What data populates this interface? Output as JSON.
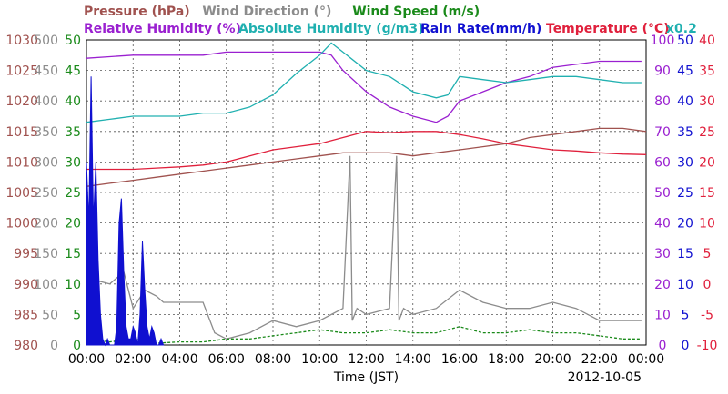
{
  "chart_data": {
    "type": "line",
    "date_label": "2012-10-05",
    "xlabel": "Time (JST)",
    "x_ticks": [
      "00:00",
      "02:00",
      "04:00",
      "06:00",
      "08:00",
      "10:00",
      "12:00",
      "14:00",
      "16:00",
      "18:00",
      "20:00",
      "22:00",
      "00:00"
    ],
    "legend_row1": [
      {
        "label": "Pressure (hPa)",
        "color": "#a0524f"
      },
      {
        "label": "Wind Direction (°)",
        "color": "#8c8c8c"
      },
      {
        "label": "Wind Speed (m/s)",
        "color": "#1a8a1a"
      }
    ],
    "legend_row2": [
      {
        "label": "Relative Humidity (%)",
        "color": "#9a20d0"
      },
      {
        "label": "Absolute Humidity (g/m3)",
        "color": "#20b0b0"
      },
      {
        "label": "Rain Rate(mm/h)",
        "color": "#1010d0"
      },
      {
        "label": "Temperature (°C)",
        "color": "#e0203c"
      },
      {
        "label": "x0.2",
        "color": "#20b0b0"
      }
    ],
    "axes": {
      "pressure": {
        "ticks": [
          "980",
          "985",
          "990",
          "995",
          "1000",
          "1005",
          "1010",
          "1015",
          "1020",
          "1025",
          "1030"
        ],
        "color": "#a0524f",
        "range": [
          980,
          1030
        ]
      },
      "wind_dir": {
        "ticks": [
          "0",
          "50",
          "100",
          "150",
          "200",
          "250",
          "300",
          "350",
          "400",
          "450",
          "500"
        ],
        "color": "#8c8c8c",
        "range": [
          0,
          500
        ]
      },
      "wind_speed": {
        "ticks": [
          "0",
          "5",
          "10",
          "15",
          "20",
          "25",
          "30",
          "35",
          "40",
          "45",
          "50"
        ],
        "color": "#1a8a1a",
        "range": [
          0,
          50
        ]
      },
      "humidity": {
        "ticks": [
          "0",
          "10",
          "20",
          "30",
          "40",
          "50",
          "60",
          "70",
          "80",
          "90",
          "100"
        ],
        "color": "#9a20d0",
        "range": [
          0,
          100
        ]
      },
      "rain": {
        "ticks": [
          "0",
          "5",
          "10",
          "15",
          "20",
          "25",
          "30",
          "35",
          "40",
          "45",
          "50"
        ],
        "color": "#1010d0",
        "range": [
          0,
          50
        ]
      },
      "temperature": {
        "ticks": [
          "-10",
          "-5",
          "0",
          "5",
          "10",
          "15",
          "20",
          "25",
          "30",
          "35",
          "40"
        ],
        "color": "#e0203c",
        "range": [
          -10,
          40
        ]
      }
    },
    "series": [
      {
        "name": "Pressure (hPa)",
        "axis": "pressure",
        "color": "#a0524f",
        "x": [
          0,
          1,
          2,
          3,
          4,
          5,
          6,
          7,
          8,
          9,
          10,
          11,
          12,
          13,
          14,
          15,
          16,
          17,
          18,
          19,
          20,
          21,
          22,
          23,
          24
        ],
        "y": [
          1006,
          1006.5,
          1007,
          1007.5,
          1008,
          1008.5,
          1009,
          1009.5,
          1010,
          1010.5,
          1011,
          1011.5,
          1011.5,
          1011.5,
          1011,
          1011.5,
          1012,
          1012.5,
          1013,
          1014,
          1014.5,
          1015,
          1015.5,
          1015.5,
          1015
        ]
      },
      {
        "name": "Temperature (°C)",
        "axis": "temperature",
        "color": "#e0203c",
        "x": [
          0,
          1,
          2,
          3,
          4,
          5,
          6,
          7,
          8,
          9,
          10,
          11,
          12,
          13,
          14,
          15,
          16,
          17,
          18,
          19,
          20,
          21,
          22,
          23,
          24
        ],
        "y": [
          18.8,
          18.8,
          18.8,
          19,
          19.2,
          19.5,
          20,
          21,
          22,
          22.5,
          23,
          24,
          25,
          24.8,
          25,
          25,
          24.5,
          23.8,
          23,
          22.5,
          22,
          21.8,
          21.5,
          21.3,
          21.2
        ]
      },
      {
        "name": "Relative Humidity (%)",
        "axis": "humidity",
        "color": "#9a20d0",
        "x": [
          0,
          1,
          2,
          3,
          4,
          5,
          6,
          7,
          8,
          9,
          10,
          10.5,
          11,
          12,
          13,
          14,
          15,
          15.5,
          16,
          17,
          18,
          19,
          20,
          21,
          22,
          23,
          23.8
        ],
        "y": [
          94,
          94.5,
          95,
          95,
          95,
          95,
          96,
          96,
          96,
          96,
          96,
          95,
          90,
          83,
          78,
          75,
          73,
          75,
          80,
          83,
          86,
          88,
          91,
          92,
          93,
          93,
          93
        ]
      },
      {
        "name": "Absolute Humidity (g/m3)",
        "axis": "humidity",
        "color": "#20b0b0",
        "x": [
          0,
          1,
          2,
          3,
          4,
          5,
          6,
          7,
          8,
          9,
          10,
          10.5,
          11,
          12,
          13,
          14,
          15,
          15.5,
          16,
          17,
          18,
          19,
          20,
          21,
          22,
          23,
          23.8
        ],
        "y": [
          73,
          74,
          75,
          75,
          75,
          76,
          76,
          78,
          82,
          89,
          95,
          99,
          96,
          90,
          88,
          83,
          81,
          82,
          88,
          87,
          86,
          87,
          88,
          88,
          87,
          86,
          86
        ]
      },
      {
        "name": "Wind Direction (°)",
        "axis": "wind_dir",
        "color": "#8c8c8c",
        "x": [
          0,
          1,
          1.6,
          2,
          2.5,
          3,
          3.3,
          4,
          5,
          5.5,
          6,
          7,
          8,
          9,
          10,
          11,
          11.3,
          11.4,
          11.6,
          12,
          13,
          13.3,
          13.4,
          13.6,
          14,
          15,
          16,
          17,
          18,
          19,
          20,
          21,
          22,
          23,
          23.8
        ],
        "y": [
          110,
          100,
          120,
          60,
          90,
          80,
          70,
          70,
          70,
          20,
          10,
          20,
          40,
          30,
          40,
          60,
          310,
          40,
          60,
          50,
          60,
          310,
          40,
          60,
          50,
          60,
          90,
          70,
          60,
          60,
          70,
          60,
          40,
          40,
          40
        ]
      },
      {
        "name": "Wind Speed (m/s)",
        "axis": "wind_speed",
        "color": "#1a8a1a",
        "x": [
          0,
          1,
          2,
          3,
          4,
          5,
          6,
          7,
          8,
          9,
          10,
          11,
          12,
          13,
          14,
          15,
          16,
          17,
          18,
          19,
          20,
          21,
          22,
          23,
          23.8
        ],
        "y": [
          1,
          0.5,
          1,
          0.3,
          0.5,
          0.5,
          1,
          1,
          1.5,
          2,
          2.5,
          2,
          2,
          2.5,
          2,
          2,
          3,
          2,
          2,
          2.5,
          2,
          2,
          1.5,
          1,
          1
        ]
      },
      {
        "name": "Rain Rate(mm/h)",
        "axis": "rain",
        "color": "#1010d0",
        "x": [
          0,
          0.1,
          0.2,
          0.3,
          0.4,
          0.5,
          0.6,
          0.7,
          0.8,
          0.9,
          1.0,
          1.1,
          1.2,
          1.3,
          1.4,
          1.5,
          1.6,
          1.7,
          1.8,
          1.9,
          2.0,
          2.1,
          2.2,
          2.3,
          2.4,
          2.5,
          2.6,
          2.7,
          2.8,
          2.9,
          3.0,
          3.1,
          3.2,
          3.3
        ],
        "y": [
          30,
          20,
          44,
          20,
          30,
          14,
          5,
          1,
          0,
          1,
          0,
          0,
          0,
          3,
          20,
          24,
          12,
          3,
          1,
          1,
          3,
          2,
          0,
          5,
          17,
          9,
          3,
          1,
          3,
          2,
          0,
          0,
          1,
          0
        ]
      }
    ]
  }
}
